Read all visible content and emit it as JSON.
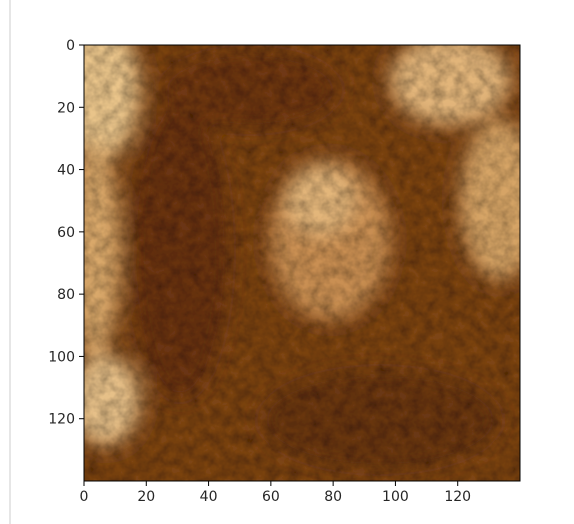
{
  "chart_data": {
    "type": "heatmap",
    "title": "",
    "xlabel": "",
    "ylabel": "",
    "xlim": [
      0,
      140
    ],
    "ylim": [
      140,
      0
    ],
    "x_ticks": [
      0,
      20,
      40,
      60,
      80,
      100,
      120
    ],
    "y_ticks": [
      0,
      20,
      40,
      60,
      80,
      100,
      120
    ],
    "x_tick_labels": [
      "0",
      "20",
      "40",
      "60",
      "80",
      "100",
      "120"
    ],
    "y_tick_labels": [
      "0",
      "20",
      "40",
      "60",
      "80",
      "100",
      "120"
    ],
    "grid": false,
    "colormap": "copper-like (dark brown to light tan)",
    "colors": {
      "dark": "#5a2c0a",
      "mid": "#9a5a24",
      "light": "#f0d09a"
    }
  }
}
